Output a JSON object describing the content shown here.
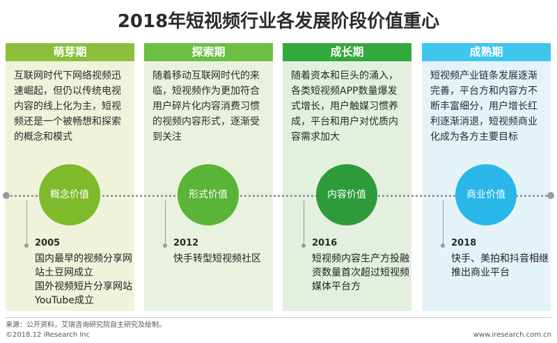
{
  "title": "2018年短视频行业各发展阶段价值重心",
  "stages": [
    {
      "name": "萌芽期",
      "description": "互联网时代下网络视频迅速崛起，但仍以传统电视内容的线上化为主，短视频还是一个被畅想和探索的概念和模式",
      "value": "概念价值",
      "year": "2005",
      "event": "国内最早的视频分享网站土豆网成立\n国外视频短片分享网站YouTube成立",
      "head_color": "#8bbf3c",
      "bg_color": "#eef3da",
      "circle_color": "#7fba2c"
    },
    {
      "name": "探索期",
      "description": "随着移动互联网时代的来临，短视频作为更加符合用户碎片化内容消费习惯的视频内容形式，逐渐受到关注",
      "value": "形式价值",
      "year": "2012",
      "event": "快手转型短视频社区",
      "head_color": "#6cbe45",
      "bg_color": "#e9f2df",
      "circle_color": "#5ab437"
    },
    {
      "name": "成长期",
      "description": "随着资本和巨头的涌入，各类短视频APP数量爆发式增长，用户触媒习惯养成，平台和用户对优质内容需求加大",
      "value": "内容价值",
      "year": "2016",
      "event": "短视频内容生产方投融资数量首次超过短视频媒体平台方",
      "head_color": "#33a83c",
      "bg_color": "#e3efdf",
      "circle_color": "#2e9b3a"
    },
    {
      "name": "成熟期",
      "description": "短视频产业链条发展逐渐完善，平台方和内容方不断丰富细分，用户增长红利逐渐消退，短视频商业化成为各方主要目标",
      "value": "商业价值",
      "year": "2018",
      "event": "快手、美拍和抖音相继推出商业平台",
      "head_color": "#3ec6ee",
      "bg_color": "#e4f3f8",
      "circle_color": "#29b7ea"
    }
  ],
  "footer": {
    "source": "来源：公开资料，艾瑞咨询研究院自主研究及绘制。",
    "copyright": "©2018.12 iResearch Inc",
    "website": "www.iresearch.com.cn"
  }
}
